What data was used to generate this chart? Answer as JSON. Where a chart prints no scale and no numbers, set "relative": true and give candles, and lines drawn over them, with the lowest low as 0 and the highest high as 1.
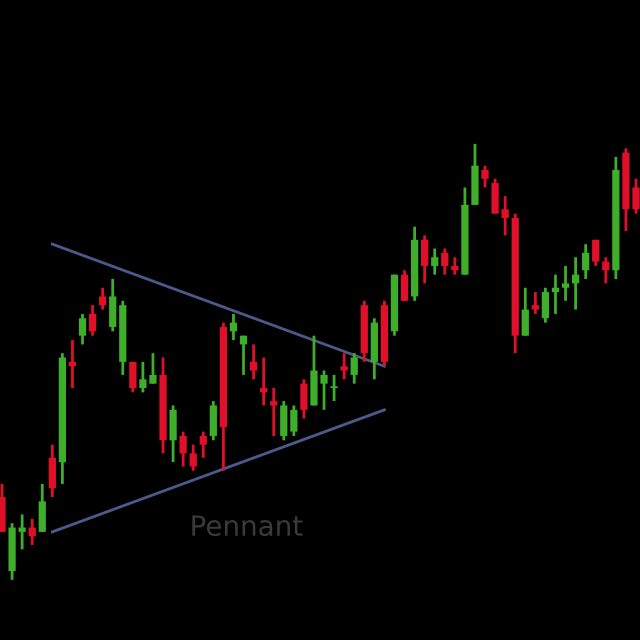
{
  "chart_data": {
    "type": "candlestick",
    "relative": true,
    "categories": [
      null,
      null,
      null,
      null,
      null,
      null,
      null,
      null,
      null,
      null,
      null,
      null,
      null,
      null,
      null,
      null,
      null,
      null,
      null,
      null,
      null,
      null,
      null,
      null,
      null,
      null,
      null,
      null,
      null,
      null,
      null,
      null,
      null,
      null,
      null,
      null,
      null,
      null,
      null,
      null,
      null,
      null,
      null,
      null,
      null,
      null,
      null,
      null,
      null,
      null,
      null,
      null,
      null,
      null,
      null,
      null,
      null,
      null,
      null,
      null,
      null,
      null,
      null,
      null
    ],
    "ohlc": [
      [
        0.19,
        0.22,
        0.11,
        0.11
      ],
      [
        0.02,
        0.13,
        0,
        0.12
      ],
      [
        0.11,
        0.15,
        0.07,
        0.12
      ],
      [
        0.12,
        0.14,
        0.08,
        0.1
      ],
      [
        0.11,
        0.22,
        0.11,
        0.18
      ],
      [
        0.28,
        0.31,
        0.19,
        0.21
      ],
      [
        0.27,
        0.52,
        0.22,
        0.51
      ],
      [
        0.5,
        0.55,
        0.44,
        0.49
      ],
      [
        0.56,
        0.61,
        0.54,
        0.6
      ],
      [
        0.61,
        0.63,
        0.56,
        0.57
      ],
      [
        0.65,
        0.67,
        0.62,
        0.63
      ],
      [
        0.58,
        0.69,
        0.57,
        0.65
      ],
      [
        0.5,
        0.64,
        0.47,
        0.63
      ],
      [
        0.5,
        0.5,
        0.43,
        0.44
      ],
      [
        0.44,
        0.5,
        0.43,
        0.46
      ],
      [
        0.45,
        0.52,
        0.45,
        0.47
      ],
      [
        0.47,
        0.51,
        0.29,
        0.32
      ],
      [
        0.32,
        0.4,
        0.27,
        0.39
      ],
      [
        0.33,
        0.34,
        0.26,
        0.29
      ],
      [
        0.29,
        0.31,
        0.25,
        0.26
      ],
      [
        0.33,
        0.34,
        0.28,
        0.31
      ],
      [
        0.33,
        0.41,
        0.32,
        0.4
      ],
      [
        0.58,
        0.59,
        0.25,
        0.35
      ],
      [
        0.57,
        0.61,
        0.55,
        0.59
      ],
      [
        0.54,
        0.56,
        0.47,
        0.56
      ],
      [
        0.5,
        0.54,
        0.46,
        0.48
      ],
      [
        0.44,
        0.51,
        0.4,
        0.43
      ],
      [
        0.41,
        0.44,
        0.33,
        0.4
      ],
      [
        0.33,
        0.41,
        0.32,
        0.4
      ],
      [
        0.34,
        0.4,
        0.33,
        0.39
      ],
      [
        0.45,
        0.46,
        0.37,
        0.39
      ],
      [
        0.4,
        0.56,
        0.4,
        0.48
      ],
      [
        0.45,
        0.48,
        0.39,
        0.47
      ],
      [
        0.44,
        0.47,
        0.41,
        0.44
      ],
      [
        0.49,
        0.52,
        0.46,
        0.48
      ],
      [
        0.47,
        0.52,
        0.45,
        0.51
      ],
      [
        0.63,
        0.64,
        0.5,
        0.52
      ],
      [
        0.5,
        0.6,
        0.46,
        0.59
      ],
      [
        0.63,
        0.64,
        0.49,
        0.5
      ],
      [
        0.57,
        0.7,
        0.56,
        0.7
      ],
      [
        0.7,
        0.71,
        0.64,
        0.64
      ],
      [
        0.65,
        0.81,
        0.64,
        0.78
      ],
      [
        0.78,
        0.79,
        0.68,
        0.72
      ],
      [
        0.72,
        0.76,
        0.7,
        0.74
      ],
      [
        0.75,
        0.76,
        0.7,
        0.72
      ],
      [
        0.72,
        0.74,
        0.7,
        0.71
      ],
      [
        0.7,
        0.9,
        0.7,
        0.86
      ],
      [
        0.86,
        1.0,
        0.86,
        0.95
      ],
      [
        0.94,
        0.95,
        0.9,
        0.92
      ],
      [
        0.91,
        0.92,
        0.84,
        0.84
      ],
      [
        0.85,
        0.88,
        0.79,
        0.83
      ],
      [
        0.83,
        0.84,
        0.52,
        0.56
      ],
      [
        0.56,
        0.67,
        0.56,
        0.62
      ],
      [
        0.63,
        0.66,
        0.61,
        0.62
      ],
      [
        0.6,
        0.67,
        0.59,
        0.66
      ],
      [
        0.66,
        0.7,
        0.61,
        0.67
      ],
      [
        0.67,
        0.72,
        0.64,
        0.68
      ],
      [
        0.68,
        0.74,
        0.62,
        0.7
      ],
      [
        0.71,
        0.77,
        0.69,
        0.75
      ],
      [
        0.78,
        0.78,
        0.72,
        0.73
      ],
      [
        0.73,
        0.74,
        0.68,
        0.71
      ],
      [
        0.71,
        0.97,
        0.69,
        0.94
      ],
      [
        0.98,
        0.99,
        0.8,
        0.85
      ],
      [
        0.9,
        0.92,
        0.84,
        0.85
      ]
    ],
    "colors": [
      "#e0102a",
      "#3fae2a",
      "#3fae2a",
      "#e0102a",
      "#3fae2a",
      "#e0102a",
      "#3fae2a",
      "#e0102a",
      "#3fae2a",
      "#e0102a",
      "#e0102a",
      "#3fae2a",
      "#3fae2a",
      "#e0102a",
      "#3fae2a",
      "#3fae2a",
      "#e0102a",
      "#3fae2a",
      "#e0102a",
      "#e0102a",
      "#e0102a",
      "#3fae2a",
      "#e0102a",
      "#3fae2a",
      "#3fae2a",
      "#e0102a",
      "#e0102a",
      "#e0102a",
      "#3fae2a",
      "#3fae2a",
      "#e0102a",
      "#3fae2a",
      "#3fae2a",
      "#3fae2a",
      "#e0102a",
      "#3fae2a",
      "#e0102a",
      "#3fae2a",
      "#e0102a",
      "#3fae2a",
      "#e0102a",
      "#3fae2a",
      "#e0102a",
      "#3fae2a",
      "#e0102a",
      "#e0102a",
      "#3fae2a",
      "#3fae2a",
      "#e0102a",
      "#e0102a",
      "#e0102a",
      "#e0102a",
      "#3fae2a",
      "#e0102a",
      "#3fae2a",
      "#3fae2a",
      "#3fae2a",
      "#3fae2a",
      "#3fae2a",
      "#e0102a",
      "#e0102a",
      "#3fae2a",
      "#e0102a",
      "#e0102a"
    ],
    "series": [
      {
        "type": "line",
        "values": [
          null,
          null,
          null,
          null,
          null,
          0.77,
          null,
          null,
          null,
          null,
          null,
          null,
          null,
          null,
          null,
          null,
          null,
          null,
          null,
          null,
          null,
          null,
          null,
          null,
          null,
          null,
          null,
          null,
          null,
          null,
          null,
          null,
          null,
          null,
          null,
          null,
          null,
          null,
          0.49,
          null,
          null,
          null,
          null,
          null,
          null,
          null,
          null,
          null,
          null,
          null,
          null,
          null,
          null,
          null,
          null,
          null,
          null,
          null,
          null,
          null,
          null,
          null,
          null,
          null
        ],
        "color": "#4a5a8a"
      },
      {
        "type": "line",
        "values": [
          null,
          null,
          null,
          null,
          null,
          0.11,
          null,
          null,
          null,
          null,
          null,
          null,
          null,
          null,
          null,
          null,
          null,
          null,
          null,
          null,
          null,
          null,
          null,
          null,
          null,
          null,
          null,
          null,
          null,
          null,
          null,
          null,
          null,
          null,
          null,
          null,
          null,
          null,
          0.39,
          null,
          null,
          null,
          null,
          null,
          null,
          null,
          null,
          null,
          null,
          null,
          null,
          null,
          null,
          null,
          null,
          null,
          null,
          null,
          null,
          null,
          null,
          null,
          null,
          null
        ],
        "color": "#4a5a8a"
      }
    ],
    "annotations": [
      "Pennant"
    ]
  }
}
